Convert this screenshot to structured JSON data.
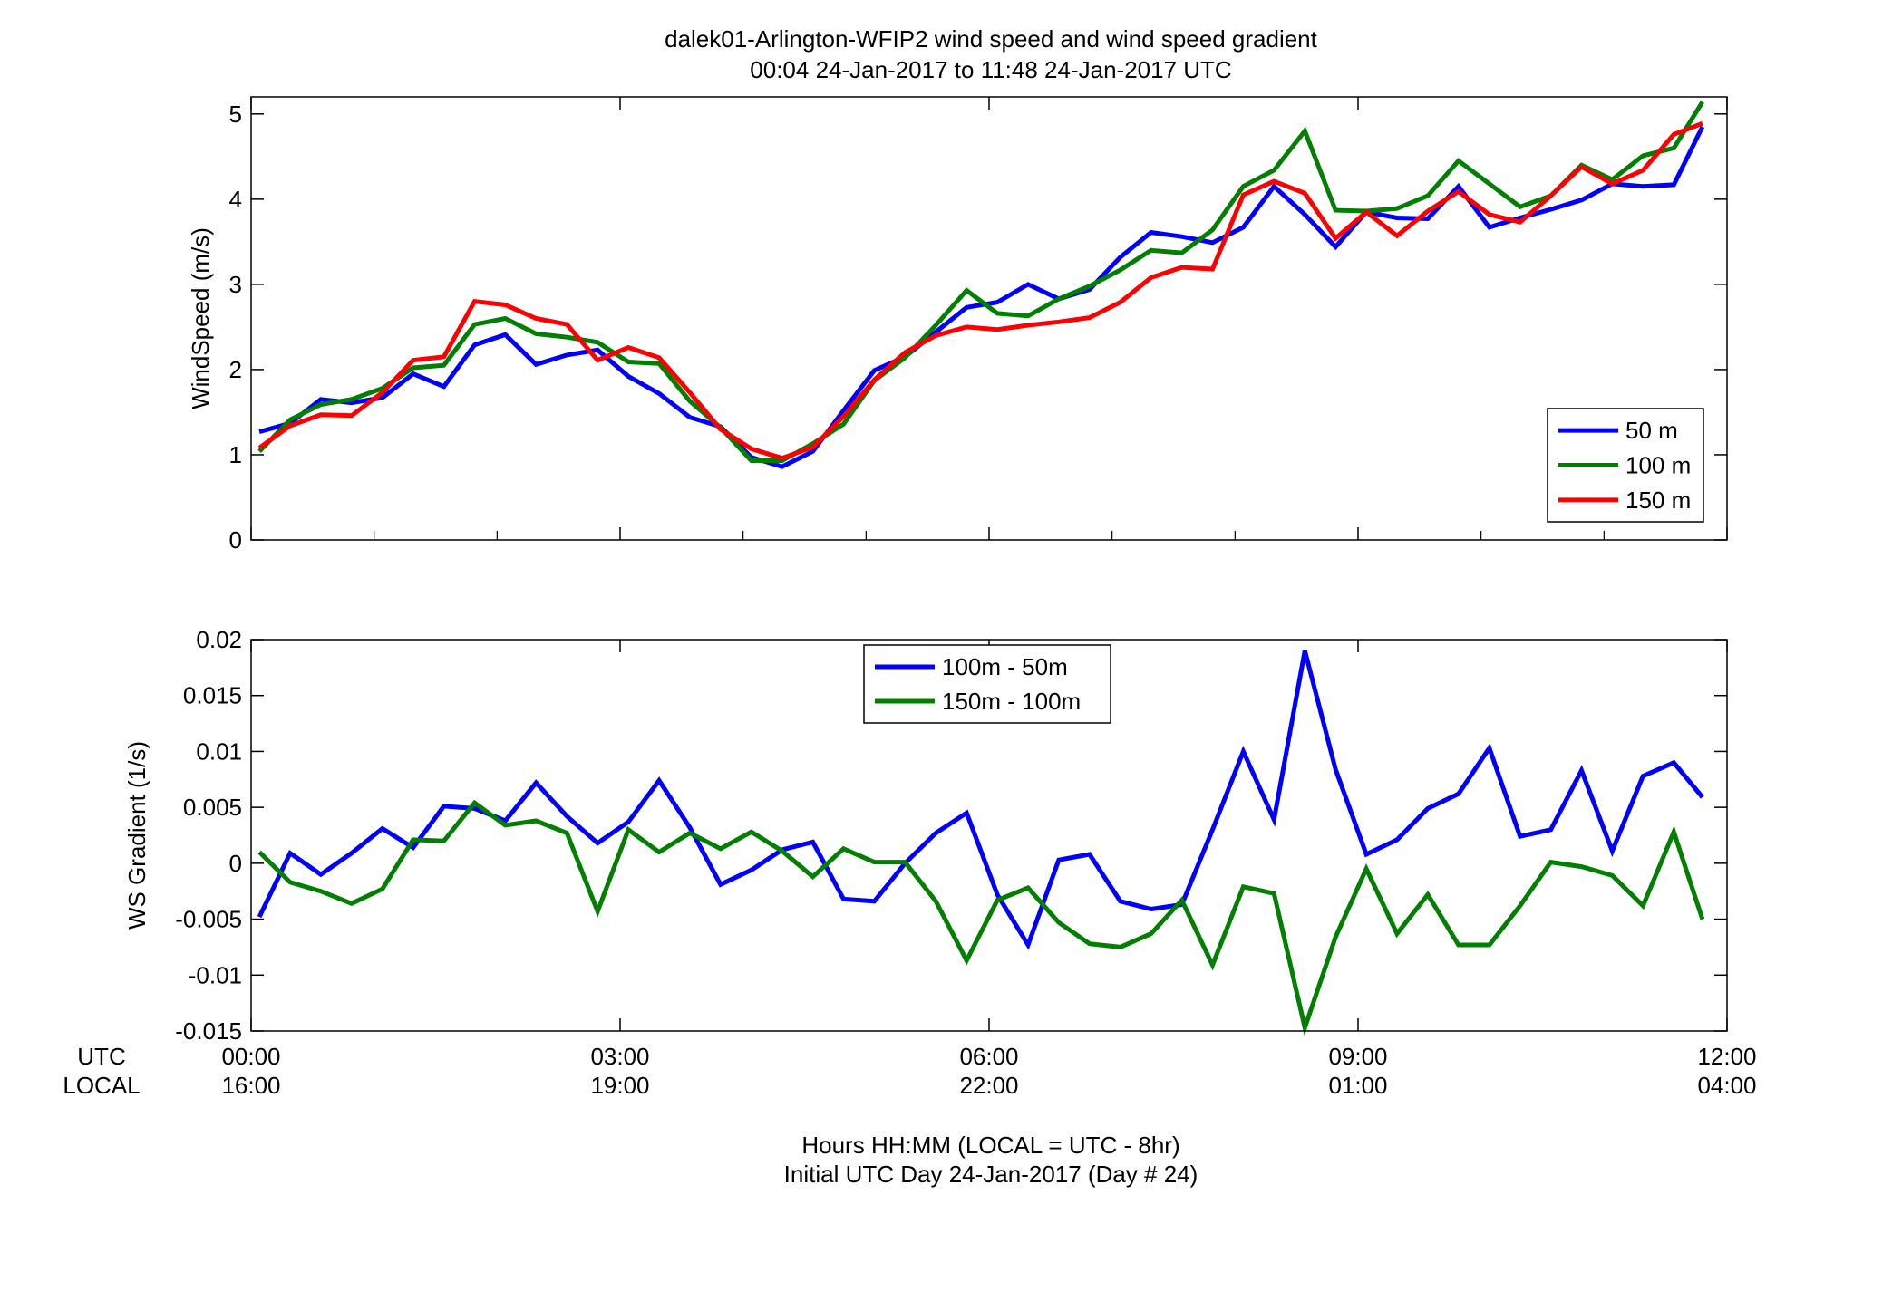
{
  "figure": {
    "title_line1": "dalek01-Arlington-WFIP2  wind speed and wind speed gradient",
    "title_line2": "00:04 24-Jan-2017 to 11:48 24-Jan-2017  UTC",
    "xlabel_line1": "Hours HH:MM  (LOCAL = UTC - 8hr)",
    "xlabel_line2": "Initial UTC Day 24-Jan-2017 (Day # 24)",
    "utc_label": "UTC",
    "local_label": "LOCAL",
    "utc_ticks": [
      "00:00",
      "03:00",
      "06:00",
      "09:00",
      "12:00"
    ],
    "local_ticks": [
      "16:00",
      "19:00",
      "22:00",
      "01:00",
      "04:00"
    ]
  },
  "chart_data": [
    {
      "type": "line",
      "ylabel": "WindSpeed (m/s)",
      "xlim": [
        0,
        12
      ],
      "ylim": [
        0,
        5.2
      ],
      "yticks": [
        0,
        1,
        2,
        3,
        4,
        5
      ],
      "ytick_labels": [
        "0",
        "1",
        "2",
        "3",
        "4",
        "5"
      ],
      "grid": false,
      "legend_position": "lower-right",
      "x": [
        0.067,
        0.317,
        0.567,
        0.817,
        1.067,
        1.317,
        1.567,
        1.817,
        2.067,
        2.317,
        2.567,
        2.817,
        3.067,
        3.317,
        3.567,
        3.817,
        4.067,
        4.317,
        4.567,
        4.817,
        5.067,
        5.317,
        5.567,
        5.817,
        6.067,
        6.317,
        6.567,
        6.817,
        7.067,
        7.317,
        7.567,
        7.817,
        8.067,
        8.317,
        8.567,
        8.817,
        9.067,
        9.317,
        9.567,
        9.817,
        10.067,
        10.317,
        10.567,
        10.817,
        11.067,
        11.317,
        11.567,
        11.8
      ],
      "series": [
        {
          "name": "50 m",
          "color": "#0000ff",
          "values": [
            1.27,
            1.37,
            1.65,
            1.61,
            1.67,
            1.95,
            1.8,
            2.29,
            2.41,
            2.06,
            2.17,
            2.23,
            1.92,
            1.72,
            1.44,
            1.33,
            0.97,
            0.86,
            1.04,
            1.52,
            1.99,
            2.15,
            2.44,
            2.73,
            2.79,
            3.0,
            2.83,
            2.94,
            3.32,
            3.61,
            3.56,
            3.49,
            3.67,
            4.15,
            3.82,
            3.44,
            3.85,
            3.78,
            3.77,
            4.15,
            3.67,
            3.78,
            3.88,
            3.99,
            4.18,
            4.15,
            4.17,
            4.85
          ]
        },
        {
          "name": "100 m",
          "color": "#007f00",
          "values": [
            1.04,
            1.41,
            1.59,
            1.65,
            1.78,
            2.02,
            2.05,
            2.53,
            2.6,
            2.42,
            2.38,
            2.32,
            2.09,
            2.07,
            1.63,
            1.32,
            0.93,
            0.93,
            1.13,
            1.36,
            1.87,
            2.14,
            2.52,
            2.93,
            2.66,
            2.63,
            2.83,
            2.98,
            3.17,
            3.4,
            3.37,
            3.64,
            4.15,
            4.34,
            4.8,
            3.87,
            3.86,
            3.89,
            4.04,
            4.45,
            4.18,
            3.91,
            4.04,
            4.4,
            4.23,
            4.51,
            4.6,
            5.14
          ]
        },
        {
          "name": "150 m",
          "color": "#ff0000",
          "values": [
            1.08,
            1.34,
            1.47,
            1.46,
            1.73,
            2.11,
            2.15,
            2.8,
            2.76,
            2.6,
            2.53,
            2.11,
            2.26,
            2.14,
            1.73,
            1.3,
            1.07,
            0.96,
            1.09,
            1.45,
            1.88,
            2.2,
            2.4,
            2.5,
            2.47,
            2.52,
            2.56,
            2.61,
            2.79,
            3.08,
            3.2,
            3.18,
            4.05,
            4.21,
            4.07,
            3.54,
            3.85,
            3.57,
            3.86,
            4.09,
            3.82,
            3.73,
            4.04,
            4.38,
            4.18,
            4.34,
            4.76,
            4.89
          ]
        }
      ]
    },
    {
      "type": "line",
      "ylabel": "WS Gradient (1/s)",
      "xlim": [
        0,
        12
      ],
      "ylim": [
        -0.015,
        0.02
      ],
      "yticks": [
        -0.015,
        -0.01,
        -0.005,
        0,
        0.005,
        0.01,
        0.015,
        0.02
      ],
      "ytick_labels": [
        "-0.015",
        "-0.01",
        "-0.005",
        "0",
        "0.005",
        "0.01",
        "0.015",
        "0.02"
      ],
      "grid": false,
      "legend_position": "upper-left",
      "x": [
        0.067,
        0.317,
        0.567,
        0.817,
        1.067,
        1.317,
        1.567,
        1.817,
        2.067,
        2.317,
        2.567,
        2.817,
        3.067,
        3.317,
        3.567,
        3.817,
        4.067,
        4.317,
        4.567,
        4.817,
        5.067,
        5.317,
        5.567,
        5.817,
        6.067,
        6.317,
        6.567,
        6.817,
        7.067,
        7.317,
        7.567,
        7.817,
        8.067,
        8.317,
        8.567,
        8.817,
        9.067,
        9.317,
        9.567,
        9.817,
        10.067,
        10.317,
        10.567,
        10.817,
        11.067,
        11.317,
        11.567,
        11.8
      ],
      "series": [
        {
          "name": "100m - 50m",
          "color": "#0000ff",
          "values": [
            -0.0048,
            0.0009,
            -0.001,
            0.0009,
            0.0031,
            0.0014,
            0.0051,
            0.0049,
            0.0038,
            0.0072,
            0.0042,
            0.0018,
            0.0037,
            0.0074,
            0.0032,
            -0.0019,
            -0.0006,
            0.0012,
            0.0019,
            -0.0032,
            -0.0034,
            0.0,
            0.0027,
            0.0045,
            -0.0028,
            -0.0073,
            0.0003,
            0.0008,
            -0.0034,
            -0.0041,
            -0.0037,
            0.003,
            0.01,
            0.0039,
            0.019,
            0.0084,
            0.0008,
            0.0021,
            0.0049,
            0.0062,
            0.0103,
            0.0024,
            0.003,
            0.0083,
            0.0011,
            0.0078,
            0.009,
            0.0059
          ]
        },
        {
          "name": "150m - 100m",
          "color": "#007f00",
          "values": [
            0.001,
            -0.0017,
            -0.0025,
            -0.0036,
            -0.0023,
            0.0021,
            0.002,
            0.0054,
            0.0034,
            0.0038,
            0.0027,
            -0.0043,
            0.003,
            0.001,
            0.0027,
            0.0013,
            0.0028,
            0.0011,
            -0.0012,
            0.0013,
            0.0001,
            0.0001,
            -0.0034,
            -0.0087,
            -0.0033,
            -0.0022,
            -0.0053,
            -0.0072,
            -0.0075,
            -0.0063,
            -0.0033,
            -0.0091,
            -0.0021,
            -0.0027,
            -0.0147,
            -0.0066,
            -0.0005,
            -0.0063,
            -0.0028,
            -0.0073,
            -0.0073,
            -0.0038,
            0.0001,
            -0.0003,
            -0.0011,
            -0.0038,
            0.0028,
            -0.005
          ]
        }
      ]
    }
  ]
}
